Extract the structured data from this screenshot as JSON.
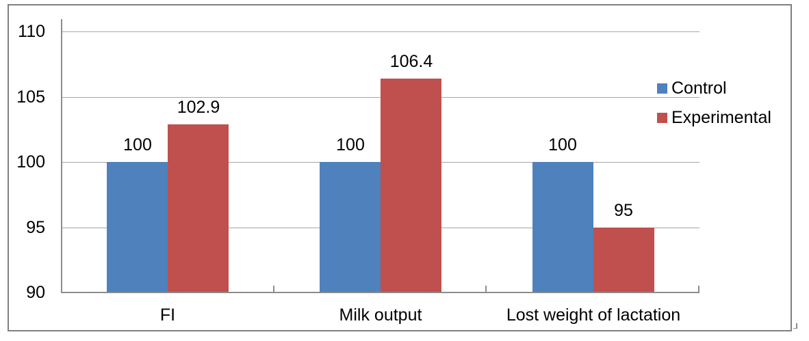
{
  "chart_data": {
    "type": "bar",
    "title": "",
    "categories": [
      "FI",
      "Milk output",
      "Lost weight of lactation"
    ],
    "series": [
      {
        "name": "Control",
        "color": "#4f81bd",
        "values": [
          100,
          100,
          100
        ]
      },
      {
        "name": "Experimental",
        "color": "#c0504d",
        "values": [
          102.9,
          106.4,
          95
        ]
      }
    ],
    "y_axis": {
      "min": 90,
      "max": 110,
      "major_unit": 5,
      "tick_labels": [
        "90",
        "95",
        "100",
        "105",
        "110"
      ]
    },
    "x_axis": {
      "tick_marks": "inside"
    },
    "legend": {
      "position": "right",
      "entries": [
        "Control",
        "Experimental"
      ]
    },
    "grid": true,
    "data_labels": true,
    "colors": {
      "gridline": "#a6a6a6",
      "axis": "#8c8c8c",
      "frame_border": "#7f7f7f",
      "text": "#000000",
      "background": "#ffffff"
    }
  }
}
